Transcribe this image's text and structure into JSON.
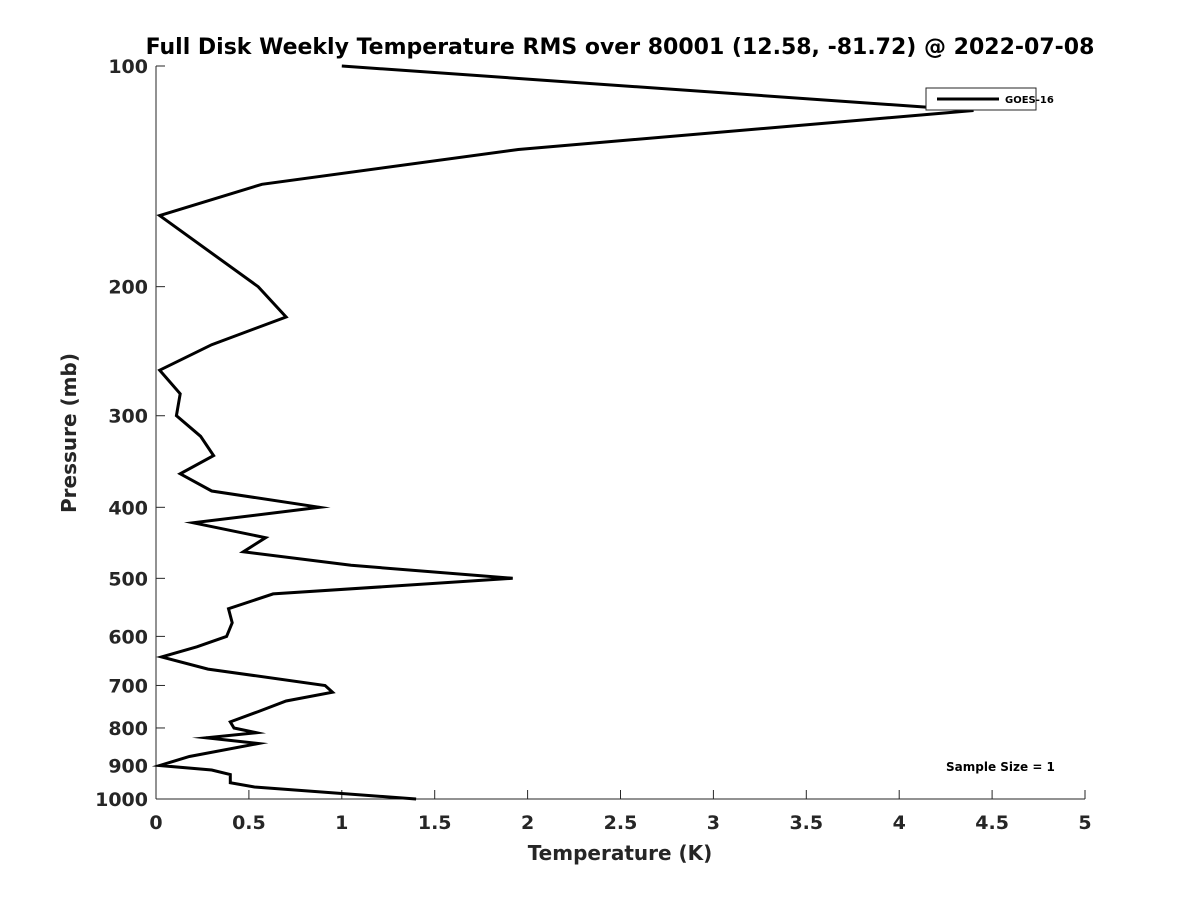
{
  "chart_data": {
    "type": "line",
    "title": "Full Disk Weekly Temperature RMS over 80001 (12.58, -81.72) @ 2022-07-08",
    "xlabel": "Temperature (K)",
    "ylabel": "Pressure (mb)",
    "xlim": [
      0,
      5
    ],
    "ylim": [
      100,
      1000
    ],
    "y_scale": "log",
    "y_direction": "reversed",
    "x_ticks": [
      0,
      0.5,
      1,
      1.5,
      2,
      2.5,
      3,
      3.5,
      4,
      4.5,
      5
    ],
    "x_tick_labels": [
      "0",
      "0.5",
      "1",
      "1.5",
      "2",
      "2.5",
      "3",
      "3.5",
      "4",
      "4.5",
      "5"
    ],
    "y_ticks": [
      100,
      200,
      300,
      400,
      500,
      600,
      700,
      800,
      900,
      1000
    ],
    "y_tick_labels": [
      "100",
      "200",
      "300",
      "400",
      "500",
      "600",
      "700",
      "800",
      "900",
      "1000"
    ],
    "grid": false,
    "legend_position": "top-right",
    "annotation": "Sample Size = 1",
    "series": [
      {
        "name": "GOES-16",
        "color": "#000000",
        "points": [
          [
            1.0,
            100
          ],
          [
            4.4,
            115
          ],
          [
            1.95,
            130
          ],
          [
            0.57,
            145
          ],
          [
            0.02,
            160
          ],
          [
            0.55,
            200
          ],
          [
            0.7,
            220
          ],
          [
            0.3,
            240
          ],
          [
            0.02,
            260
          ],
          [
            0.13,
            280
          ],
          [
            0.11,
            300
          ],
          [
            0.24,
            320
          ],
          [
            0.31,
            340
          ],
          [
            0.13,
            360
          ],
          [
            0.3,
            380
          ],
          [
            0.88,
            400
          ],
          [
            0.2,
            420
          ],
          [
            0.59,
            440
          ],
          [
            0.47,
            460
          ],
          [
            1.05,
            480
          ],
          [
            1.92,
            500
          ],
          [
            0.63,
            525
          ],
          [
            0.39,
            550
          ],
          [
            0.41,
            575
          ],
          [
            0.38,
            600
          ],
          [
            0.22,
            620
          ],
          [
            0.03,
            640
          ],
          [
            0.28,
            665
          ],
          [
            0.91,
            700
          ],
          [
            0.95,
            715
          ],
          [
            0.7,
            735
          ],
          [
            0.55,
            760
          ],
          [
            0.4,
            785
          ],
          [
            0.42,
            800
          ],
          [
            0.54,
            812
          ],
          [
            0.27,
            825
          ],
          [
            0.55,
            840
          ],
          [
            0.18,
            875
          ],
          [
            0.02,
            900
          ],
          [
            0.3,
            913
          ],
          [
            0.4,
            926
          ],
          [
            0.4,
            939
          ],
          [
            0.4,
            950
          ],
          [
            0.53,
            963
          ],
          [
            1.4,
            1000
          ]
        ]
      }
    ]
  }
}
